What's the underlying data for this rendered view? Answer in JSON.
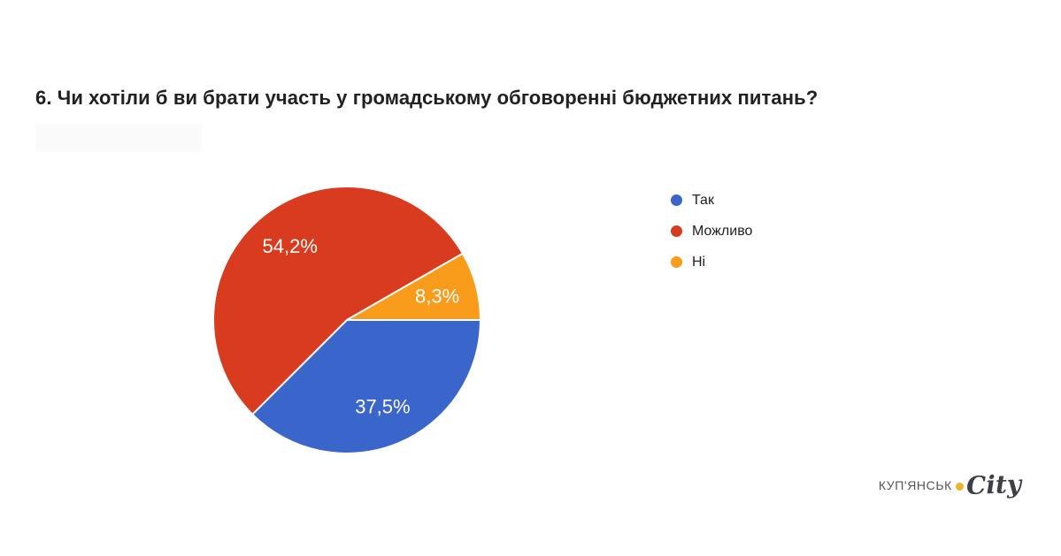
{
  "title": {
    "text": "6. Чи хотіли б ви брати участь у громадському обговоренні бюджетних питань?"
  },
  "chart_data": {
    "type": "pie",
    "title": "6. Чи хотіли б ви брати участь у громадському обговоренні бюджетних питань?",
    "categories": [
      "Так",
      "Можливо",
      "Ні"
    ],
    "values": [
      37.5,
      54.2,
      8.3
    ],
    "value_labels": [
      "37,5%",
      "54,2%",
      "8,3%"
    ],
    "colors": [
      "#3A66CB",
      "#D93B1E",
      "#F99B1B"
    ],
    "start_angle_deg": 0,
    "direction": "clockwise",
    "legend_position": "right",
    "slice_label_color": "#FFFFFF",
    "slice_separator_color": "#FFFFFF"
  },
  "legend": {
    "items": [
      {
        "label": "Так",
        "color": "#3A66CB"
      },
      {
        "label": "Можливо",
        "color": "#D93B1E"
      },
      {
        "label": "Ні",
        "color": "#F99B1B"
      }
    ]
  },
  "logo": {
    "prefix": "КУП'ЯНСЬК",
    "suffix": "City",
    "dot_color": "#EFB32B",
    "prefix_color": "#54555A",
    "suffix_color": "#3E3F44"
  }
}
